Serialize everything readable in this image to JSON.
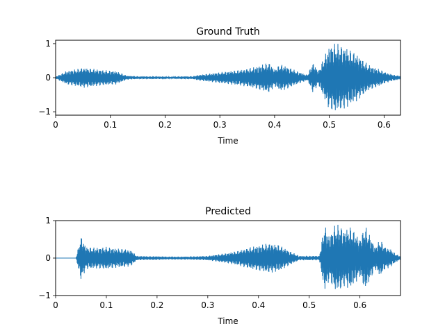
{
  "chart_data": [
    {
      "type": "line",
      "title": "Ground Truth",
      "xlabel": "Time",
      "ylabel": "",
      "xlim": [
        0,
        0.63
      ],
      "ylim": [
        -1.1,
        1.1
      ],
      "xticks": [
        0,
        0.1,
        0.2,
        0.3,
        0.4,
        0.5,
        0.6
      ],
      "xtick_labels": [
        "0",
        "0.1",
        "0.2",
        "0.3",
        "0.4",
        "0.5",
        "0.6"
      ],
      "yticks": [
        1,
        0,
        -1
      ],
      "ytick_labels": [
        "1",
        "0",
        "−1"
      ],
      "grid": false,
      "line_color": "#1f77b4",
      "series": [
        {
          "x": [
            0.0,
            0.02,
            0.04,
            0.05,
            0.07,
            0.09,
            0.11,
            0.13,
            0.15,
            0.17,
            0.19,
            0.21,
            0.23,
            0.25,
            0.26,
            0.28,
            0.3,
            0.32,
            0.34,
            0.36,
            0.38,
            0.39,
            0.4,
            0.41,
            0.42,
            0.43,
            0.44,
            0.46,
            0.47,
            0.48,
            0.49,
            0.5,
            0.51,
            0.52,
            0.53,
            0.54,
            0.55,
            0.56,
            0.57,
            0.58,
            0.59,
            0.6,
            0.61,
            0.62,
            0.63
          ],
          "envelope": [
            0.03,
            0.2,
            0.26,
            0.3,
            0.26,
            0.22,
            0.2,
            0.06,
            0.04,
            0.04,
            0.04,
            0.03,
            0.04,
            0.04,
            0.08,
            0.12,
            0.16,
            0.2,
            0.24,
            0.3,
            0.4,
            0.45,
            0.25,
            0.4,
            0.35,
            0.28,
            0.2,
            0.08,
            0.45,
            0.2,
            0.6,
            0.95,
            1.02,
            0.98,
            0.9,
            0.8,
            0.7,
            0.55,
            0.4,
            0.32,
            0.26,
            0.18,
            0.12,
            0.08,
            0.05
          ]
        }
      ]
    },
    {
      "type": "line",
      "title": "Predicted",
      "xlabel": "Time",
      "ylabel": "",
      "xlim": [
        0,
        0.68
      ],
      "ylim": [
        -1.0,
        1.0
      ],
      "xticks": [
        0,
        0.1,
        0.2,
        0.3,
        0.4,
        0.5,
        0.6
      ],
      "xtick_labels": [
        "0",
        "0.1",
        "0.2",
        "0.3",
        "0.4",
        "0.5",
        "0.6"
      ],
      "yticks": [
        1,
        0,
        -1
      ],
      "ytick_labels": [
        "1",
        "0",
        "−1"
      ],
      "grid": false,
      "line_color": "#1f77b4",
      "series": [
        {
          "x": [
            0.0,
            0.04,
            0.045,
            0.05,
            0.06,
            0.08,
            0.1,
            0.12,
            0.14,
            0.15,
            0.16,
            0.18,
            0.2,
            0.22,
            0.24,
            0.26,
            0.28,
            0.3,
            0.32,
            0.34,
            0.36,
            0.38,
            0.4,
            0.42,
            0.44,
            0.46,
            0.48,
            0.5,
            0.52,
            0.53,
            0.54,
            0.55,
            0.56,
            0.57,
            0.58,
            0.59,
            0.6,
            0.61,
            0.62,
            0.63,
            0.64,
            0.65,
            0.66,
            0.67,
            0.68
          ],
          "envelope": [
            0.0,
            0.0,
            0.3,
            0.6,
            0.3,
            0.28,
            0.3,
            0.26,
            0.24,
            0.2,
            0.06,
            0.05,
            0.05,
            0.04,
            0.04,
            0.04,
            0.05,
            0.06,
            0.1,
            0.14,
            0.2,
            0.28,
            0.34,
            0.4,
            0.36,
            0.2,
            0.06,
            0.06,
            0.06,
            0.9,
            0.6,
            0.88,
            0.9,
            0.75,
            0.85,
            0.7,
            0.5,
            0.88,
            0.6,
            0.3,
            0.5,
            0.3,
            0.25,
            0.12,
            0.05
          ]
        }
      ]
    }
  ]
}
